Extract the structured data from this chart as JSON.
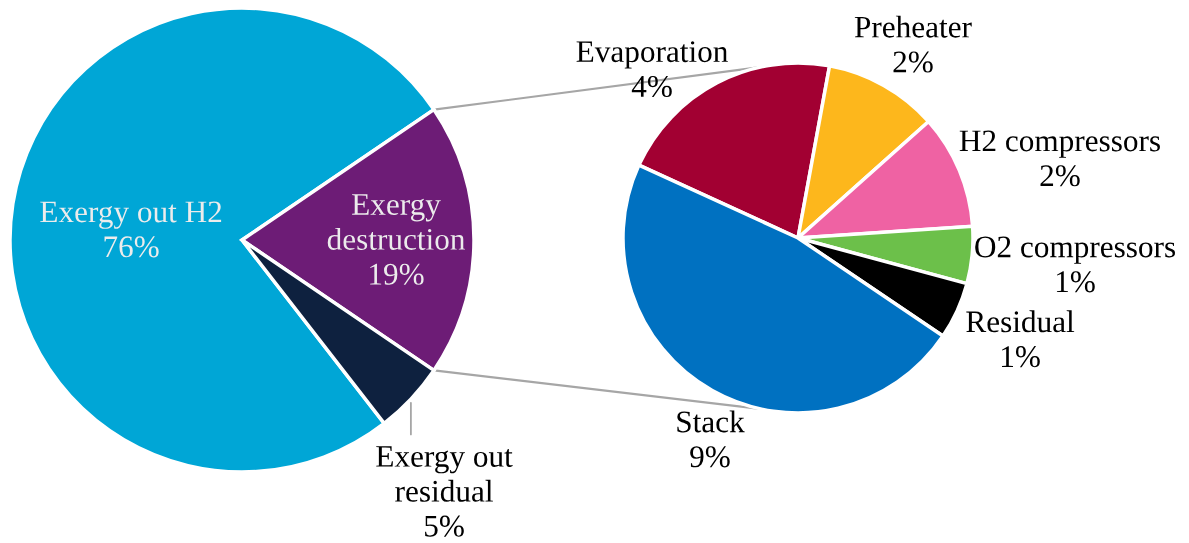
{
  "chart_data": [
    {
      "type": "pie",
      "categories": [
        "Exergy out H2",
        "Exergy destruction",
        "Exergy out residual"
      ],
      "values": [
        76,
        19,
        5
      ],
      "colors": [
        "#00a6d6",
        "#6d1c76",
        "#0e213f"
      ],
      "value_labels": [
        "76%",
        "19%",
        "5%"
      ]
    },
    {
      "type": "pie",
      "categories": [
        "Evaporation",
        "Preheater",
        "H2 compressors",
        "O2 compressors",
        "Residual",
        "Stack"
      ],
      "values": [
        4,
        2,
        2,
        1,
        1,
        9
      ],
      "colors": [
        "#a20032",
        "#fdb71c",
        "#ef62a3",
        "#6cc04a",
        "#000000",
        "#0071c1"
      ],
      "value_labels": [
        "4%",
        "2%",
        "2%",
        "1%",
        "1%",
        "9%"
      ]
    }
  ]
}
